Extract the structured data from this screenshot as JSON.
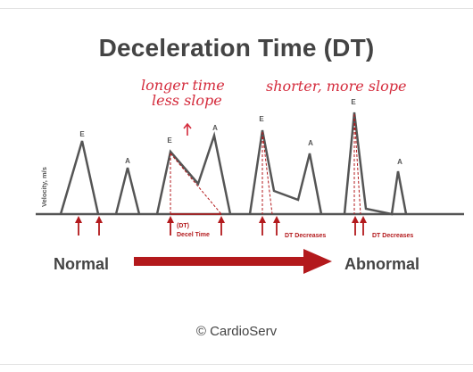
{
  "title": "Deceleration Time (DT)",
  "handwritten": {
    "left_line1": "longer time",
    "left_line2": "less slope",
    "right": "shorter, more slope"
  },
  "y_axis_label": "Velocity, m/s",
  "wave_labels": {
    "e": "E",
    "a": "A"
  },
  "annotations": {
    "dt_short": "(DT)",
    "decel_time": "Decel Time",
    "dt_decreases": "DT Decreases"
  },
  "progression": {
    "start": "Normal",
    "end": "Abnormal"
  },
  "credit": "© CardioServ",
  "colors": {
    "accent": "#b3191c",
    "line": "#555555",
    "text": "#444444",
    "handwriting": "#d42b3c"
  }
}
